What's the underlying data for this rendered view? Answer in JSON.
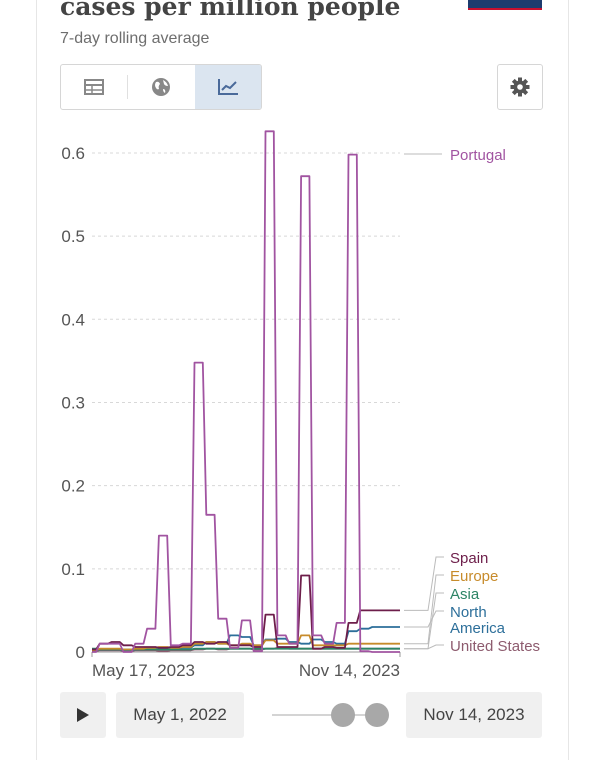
{
  "header": {
    "title": "cases per million people",
    "subtitle": "7-day rolling average"
  },
  "toolbar": {
    "tabs": [
      {
        "name": "table",
        "icon": "table-icon"
      },
      {
        "name": "map",
        "icon": "globe-icon"
      },
      {
        "name": "chart",
        "icon": "line-chart-icon",
        "active": true
      }
    ],
    "settings_icon": "gear-icon"
  },
  "chart_data": {
    "type": "line",
    "ylim": [
      0,
      0.63
    ],
    "yticks": [
      0,
      0.1,
      0.2,
      0.3,
      0.4,
      0.5,
      0.6
    ],
    "ytick_labels": [
      "0",
      "0.1",
      "0.2",
      "0.3",
      "0.4",
      "0.5",
      "0.6"
    ],
    "xtick_labels": [
      {
        "label": "May 17, 2023",
        "week": 0
      },
      {
        "label": "Nov 14, 2023",
        "week": 26
      }
    ],
    "x_weeks": [
      0,
      1,
      2,
      3,
      4,
      5,
      6,
      7,
      8,
      9,
      10,
      11,
      12,
      13,
      14,
      15,
      16,
      17,
      18,
      19,
      20,
      21,
      22,
      23,
      24,
      25,
      26
    ],
    "series": [
      {
        "name": "Portugal",
        "color": "#a154a1",
        "values": [
          0,
          0.01,
          0.01,
          0,
          0.01,
          0.028,
          0.14,
          0.008,
          0.01,
          0.348,
          0.165,
          0.04,
          0.005,
          0.038,
          0.001,
          0.626,
          0.02,
          0.01,
          0.572,
          0.02,
          0.01,
          0.035,
          0.598,
          0.001,
          0,
          0,
          0
        ]
      },
      {
        "name": "Spain",
        "color": "#6d1e4a",
        "values": [
          0.003,
          0.01,
          0.012,
          0.008,
          0.006,
          0.006,
          0.005,
          0.006,
          0.008,
          0.012,
          0.01,
          0.012,
          0.008,
          0.008,
          0.006,
          0.045,
          0.006,
          0.006,
          0.092,
          0.004,
          0.006,
          0.005,
          0.035,
          0.05,
          0.05,
          0.05,
          0.05
        ]
      },
      {
        "name": "Europe",
        "color": "#c78b2b",
        "values": [
          0.002,
          0.004,
          0.004,
          0.003,
          0.004,
          0.005,
          0.006,
          0.005,
          0.006,
          0.01,
          0.012,
          0.01,
          0.008,
          0.01,
          0.008,
          0.014,
          0.01,
          0.01,
          0.02,
          0.008,
          0.008,
          0.008,
          0.01,
          0.01,
          0.01,
          0.01,
          0.01
        ]
      },
      {
        "name": "Asia",
        "color": "#2c8465",
        "values": [
          0.004,
          0.003,
          0.003,
          0.003,
          0.003,
          0.003,
          0.003,
          0.003,
          0.003,
          0.004,
          0.004,
          0.004,
          0.004,
          0.004,
          0.004,
          0.004,
          0.004,
          0.004,
          0.004,
          0.004,
          0.004,
          0.004,
          0.004,
          0.004,
          0.004,
          0.004,
          0.004
        ]
      },
      {
        "name": "North America",
        "color": "#2d6f9a",
        "values": [
          0.002,
          0.003,
          0.003,
          0.002,
          0.003,
          0.004,
          0.003,
          0.004,
          0.005,
          0.008,
          0.012,
          0.01,
          0.02,
          0.018,
          0.008,
          0.015,
          0.016,
          0.012,
          0.01,
          0.015,
          0.012,
          0.01,
          0.025,
          0.028,
          0.03,
          0.03,
          0.03
        ]
      },
      {
        "name": "United States",
        "color": "#8d5b6e",
        "values": [
          0.001,
          0.002,
          0.002,
          0.001,
          0.002,
          0.002,
          0.001,
          0.002,
          0.002,
          0.003,
          0.004,
          0.003,
          0.004,
          0.004,
          0.003,
          0.004,
          0.005,
          0.004,
          0.004,
          0.004,
          0.004,
          0.004,
          0.004,
          0.004,
          0.004,
          0.004,
          0.004
        ]
      }
    ]
  },
  "timeline": {
    "play_icon": "play-icon",
    "start_date": "May 1, 2022",
    "end_date": "Nov 14, 2023"
  }
}
